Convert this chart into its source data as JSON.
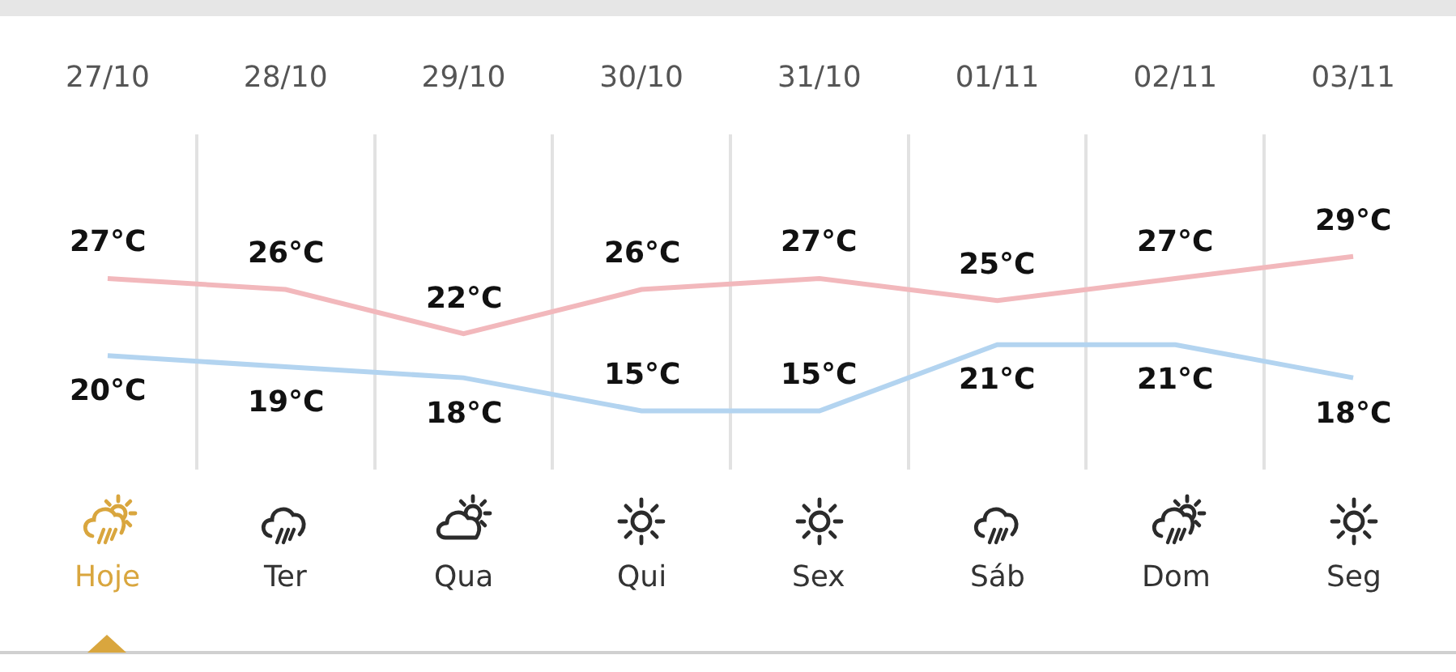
{
  "chart_data": {
    "type": "line",
    "categories": [
      "27/10",
      "28/10",
      "29/10",
      "30/10",
      "31/10",
      "01/11",
      "02/11",
      "03/11"
    ],
    "series": [
      {
        "color": "#f2b8bc",
        "values": [
          27,
          26,
          22,
          26,
          27,
          25,
          27,
          29
        ],
        "value_labels": [
          "27°C",
          "26°C",
          "22°C",
          "26°C",
          "27°C",
          "25°C",
          "27°C",
          "29°C"
        ]
      },
      {
        "color": "#b3d4f0",
        "values": [
          20,
          19,
          18,
          15,
          15,
          21,
          21,
          18
        ],
        "value_labels": [
          "20°C",
          "19°C",
          "18°C",
          "15°C",
          "15°C",
          "21°C",
          "21°C",
          "18°C"
        ]
      }
    ],
    "grid": "x",
    "annotations": [
      "Hoje",
      "Ter",
      "Qua",
      "Qui",
      "Sex",
      "Sáb",
      "Dom",
      "Seg"
    ]
  }
}
